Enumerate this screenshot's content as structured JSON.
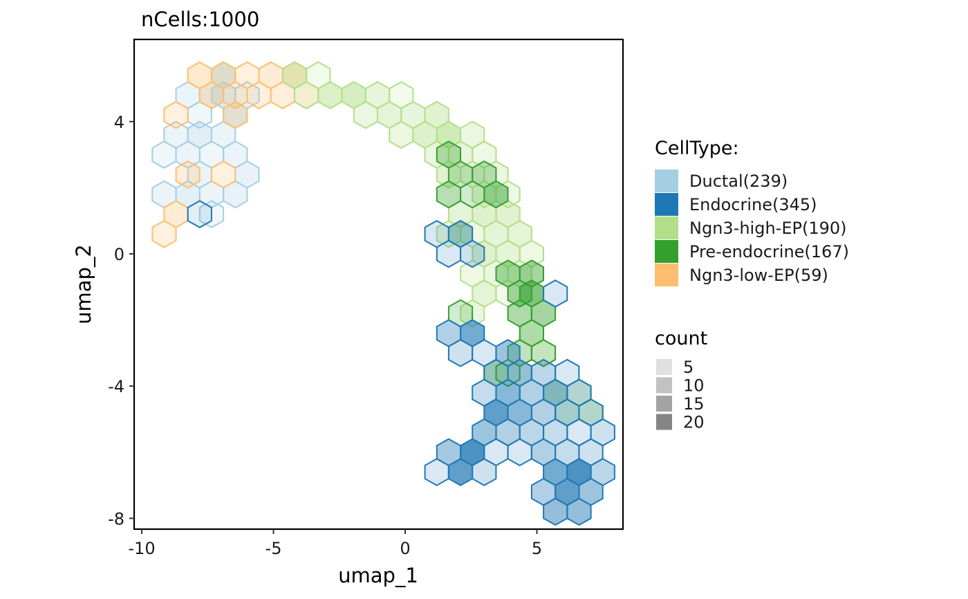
{
  "chart_data": {
    "type": "hexbin",
    "title": "nCells:1000",
    "xlabel": "umap_1",
    "ylabel": "umap_2",
    "xlim": [
      -10.3,
      8.4
    ],
    "ylim": [
      -8.3,
      6.5
    ],
    "xticks": [
      -10,
      -5,
      0,
      5
    ],
    "yticks": [
      -8,
      -4,
      0,
      4
    ],
    "xtick_labels": [
      "-10",
      "-5",
      "0",
      "5"
    ],
    "ytick_labels": [
      "-8",
      "-4",
      "0",
      "4"
    ],
    "grid": false,
    "legend_position": "right",
    "celltype_legend": {
      "title": "CellType:",
      "items": [
        {
          "label": "Ductal(239)",
          "color": "#A6CEE3"
        },
        {
          "label": "Endocrine(345)",
          "color": "#1F78B4"
        },
        {
          "label": "Ngn3-high-EP(190)",
          "color": "#B2DF8A"
        },
        {
          "label": "Pre-endocrine(167)",
          "color": "#33A02C"
        },
        {
          "label": "Ngn3-low-EP(59)",
          "color": "#FDBF6F"
        }
      ]
    },
    "count_legend": {
      "title": "count",
      "items": [
        {
          "label": "5",
          "value": 5
        },
        {
          "label": "10",
          "value": 10
        },
        {
          "label": "15",
          "value": 15
        },
        {
          "label": "20",
          "value": 20
        }
      ]
    },
    "series": [
      {
        "name": "Ductal(239)",
        "color": "#A6CEE3",
        "bins": [
          [
            -7.8,
            4.2,
            2
          ],
          [
            -7.35,
            4.8,
            5
          ],
          [
            -6.9,
            5.4,
            9
          ],
          [
            -8.25,
            4.8,
            3
          ],
          [
            -8.7,
            3.6,
            3
          ],
          [
            -7.8,
            3.6,
            6
          ],
          [
            -6.9,
            3.6,
            3
          ],
          [
            -6.45,
            4.2,
            7
          ],
          [
            -6.9,
            4.8,
            7
          ],
          [
            -6.0,
            4.8,
            3
          ],
          [
            -9.15,
            3.0,
            2
          ],
          [
            -8.25,
            3.0,
            3
          ],
          [
            -7.35,
            3.0,
            2
          ],
          [
            -6.45,
            3.0,
            3
          ],
          [
            -7.8,
            2.4,
            3
          ],
          [
            -6.0,
            2.4,
            4
          ],
          [
            -9.15,
            1.8,
            3
          ],
          [
            -8.25,
            1.8,
            5
          ],
          [
            -7.35,
            1.8,
            3
          ],
          [
            -6.45,
            1.8,
            4
          ],
          [
            -7.35,
            1.2,
            2
          ]
        ]
      },
      {
        "name": "Ngn3-low-EP(59)",
        "color": "#FDBF6F",
        "bins": [
          [
            -7.8,
            5.4,
            6
          ],
          [
            -6.9,
            5.4,
            5
          ],
          [
            -6.0,
            5.4,
            3
          ],
          [
            -5.1,
            5.4,
            5
          ],
          [
            -4.2,
            5.4,
            7
          ],
          [
            -7.35,
            4.8,
            5
          ],
          [
            -6.45,
            4.8,
            4
          ],
          [
            -5.55,
            4.8,
            3
          ],
          [
            -4.65,
            4.8,
            4
          ],
          [
            -3.75,
            4.8,
            3
          ],
          [
            -8.7,
            4.2,
            3
          ],
          [
            -6.45,
            4.2,
            4
          ],
          [
            -8.25,
            2.4,
            4
          ],
          [
            -6.9,
            2.4,
            3
          ],
          [
            -8.7,
            1.2,
            5
          ],
          [
            -9.15,
            0.6,
            3
          ]
        ]
      },
      {
        "name": "Ngn3-high-EP(190)",
        "color": "#B2DF8A",
        "bins": [
          [
            -4.2,
            5.4,
            6
          ],
          [
            -3.3,
            5.4,
            2
          ],
          [
            -3.75,
            4.8,
            2
          ],
          [
            -2.85,
            4.8,
            9
          ],
          [
            -1.95,
            4.8,
            10
          ],
          [
            -1.05,
            4.8,
            5
          ],
          [
            -0.15,
            4.8,
            2
          ],
          [
            -1.5,
            4.2,
            4
          ],
          [
            -0.6,
            4.2,
            6
          ],
          [
            0.3,
            4.2,
            5
          ],
          [
            1.2,
            4.2,
            7
          ],
          [
            -0.15,
            3.6,
            4
          ],
          [
            0.75,
            3.6,
            8
          ],
          [
            1.65,
            3.6,
            12
          ],
          [
            2.55,
            3.6,
            4
          ],
          [
            1.2,
            3.0,
            4
          ],
          [
            2.1,
            3.0,
            5
          ],
          [
            3.0,
            3.0,
            3
          ],
          [
            1.65,
            2.4,
            7
          ],
          [
            2.55,
            2.4,
            5
          ],
          [
            3.45,
            2.4,
            4
          ],
          [
            3.0,
            1.8,
            6
          ],
          [
            3.9,
            1.8,
            3
          ],
          [
            2.1,
            1.2,
            6
          ],
          [
            3.0,
            1.2,
            8
          ],
          [
            3.9,
            1.2,
            7
          ],
          [
            1.65,
            0.6,
            5
          ],
          [
            2.55,
            0.6,
            3
          ],
          [
            3.45,
            0.6,
            6
          ],
          [
            4.35,
            0.6,
            6
          ],
          [
            3.0,
            0.0,
            8
          ],
          [
            3.9,
            0.0,
            6
          ],
          [
            4.8,
            0.0,
            3
          ],
          [
            2.55,
            -0.6,
            3
          ],
          [
            3.45,
            -0.6,
            4
          ],
          [
            4.35,
            -0.6,
            5
          ],
          [
            3.0,
            -1.2,
            6
          ],
          [
            3.9,
            -1.2,
            2
          ],
          [
            2.55,
            -1.8,
            4
          ],
          [
            4.8,
            -2.4,
            2
          ],
          [
            5.25,
            -3.0,
            3
          ],
          [
            4.35,
            -3.6,
            2
          ]
        ]
      },
      {
        "name": "Pre-endocrine(167)",
        "color": "#33A02C",
        "bins": [
          [
            1.65,
            3.0,
            6
          ],
          [
            2.1,
            2.4,
            4
          ],
          [
            3.0,
            2.4,
            5
          ],
          [
            1.65,
            1.8,
            6
          ],
          [
            2.55,
            1.8,
            3
          ],
          [
            3.45,
            1.8,
            9
          ],
          [
            2.1,
            0.6,
            3
          ],
          [
            3.9,
            -0.6,
            7
          ],
          [
            4.8,
            -0.6,
            8
          ],
          [
            4.35,
            -1.2,
            8
          ],
          [
            4.8,
            -1.2,
            12
          ],
          [
            2.1,
            -1.8,
            3
          ],
          [
            4.35,
            -1.8,
            7
          ],
          [
            5.25,
            -1.8,
            8
          ],
          [
            4.8,
            -2.4,
            6
          ],
          [
            4.35,
            -3.0,
            5
          ],
          [
            5.25,
            -3.0,
            3
          ],
          [
            3.9,
            -3.6,
            2
          ],
          [
            3.45,
            -3.6,
            6
          ],
          [
            5.7,
            -4.2,
            5
          ],
          [
            6.15,
            -4.8,
            3
          ],
          [
            6.6,
            -4.2,
            2
          ],
          [
            7.05,
            -4.8,
            3
          ]
        ]
      },
      {
        "name": "Endocrine(345)",
        "color": "#1F78B4",
        "bins": [
          [
            -7.8,
            1.2,
            1
          ],
          [
            1.2,
            0.6,
            2
          ],
          [
            2.1,
            0.6,
            5
          ],
          [
            1.65,
            0.0,
            2
          ],
          [
            2.55,
            0.0,
            3
          ],
          [
            5.7,
            -1.2,
            2
          ],
          [
            1.65,
            -2.4,
            6
          ],
          [
            2.55,
            -2.4,
            12
          ],
          [
            2.1,
            -3.0,
            3
          ],
          [
            3.0,
            -3.0,
            2
          ],
          [
            3.9,
            -3.0,
            8
          ],
          [
            3.45,
            -3.6,
            3
          ],
          [
            4.35,
            -3.6,
            8
          ],
          [
            5.25,
            -3.6,
            5
          ],
          [
            6.15,
            -3.6,
            2
          ],
          [
            3.0,
            -4.2,
            4
          ],
          [
            3.9,
            -4.2,
            10
          ],
          [
            4.8,
            -4.2,
            6
          ],
          [
            5.7,
            -4.2,
            7
          ],
          [
            6.6,
            -4.2,
            3
          ],
          [
            3.45,
            -4.8,
            14
          ],
          [
            4.35,
            -4.8,
            10
          ],
          [
            5.25,
            -4.8,
            6
          ],
          [
            6.15,
            -4.8,
            4
          ],
          [
            7.05,
            -4.8,
            2
          ],
          [
            3.0,
            -5.4,
            8
          ],
          [
            3.9,
            -5.4,
            6
          ],
          [
            4.8,
            -5.4,
            5
          ],
          [
            5.7,
            -5.4,
            4
          ],
          [
            6.6,
            -5.4,
            2
          ],
          [
            7.5,
            -5.4,
            3
          ],
          [
            1.65,
            -6.0,
            7
          ],
          [
            2.55,
            -6.0,
            16
          ],
          [
            3.45,
            -6.0,
            2
          ],
          [
            4.35,
            -6.0,
            2
          ],
          [
            5.25,
            -6.0,
            6
          ],
          [
            6.15,
            -6.0,
            4
          ],
          [
            7.05,
            -6.0,
            3
          ],
          [
            1.2,
            -6.6,
            2
          ],
          [
            2.1,
            -6.6,
            14
          ],
          [
            3.0,
            -6.6,
            3
          ],
          [
            5.7,
            -6.6,
            12
          ],
          [
            6.6,
            -6.6,
            16
          ],
          [
            7.5,
            -6.6,
            5
          ],
          [
            5.25,
            -7.2,
            6
          ],
          [
            6.15,
            -7.2,
            14
          ],
          [
            7.05,
            -7.2,
            8
          ],
          [
            5.7,
            -7.8,
            9
          ],
          [
            6.6,
            -7.8,
            9
          ]
        ]
      }
    ]
  }
}
